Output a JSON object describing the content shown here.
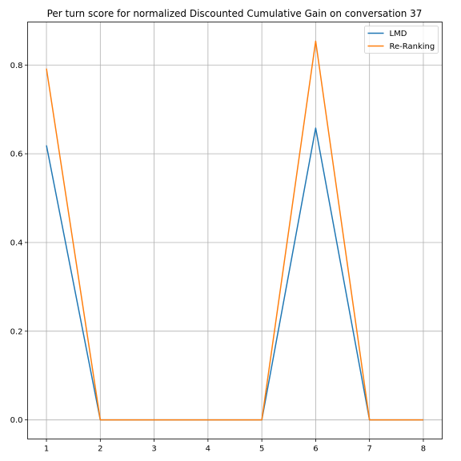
{
  "chart_data": {
    "type": "line",
    "title": "Per turn score for normalized Discounted Cumulative Gain on conversation 37",
    "xlabel": "",
    "ylabel": "",
    "x": [
      1,
      2,
      3,
      4,
      5,
      6,
      7,
      8
    ],
    "x_ticks": [
      "1",
      "2",
      "3",
      "4",
      "5",
      "6",
      "7",
      "8"
    ],
    "y_ticks": [
      "0.0",
      "0.2",
      "0.4",
      "0.6",
      "0.8"
    ],
    "y_tick_values": [
      0.0,
      0.2,
      0.4,
      0.6,
      0.8
    ],
    "xlim": [
      0.65,
      8.35
    ],
    "ylim": [
      -0.043,
      0.897
    ],
    "grid": true,
    "legend_position": "top-right",
    "series": [
      {
        "name": "LMD",
        "color": "#1f77b4",
        "values": [
          0.619,
          0.0,
          0.0,
          0.0,
          0.0,
          0.658,
          0.0,
          0.0
        ]
      },
      {
        "name": "Re-Ranking",
        "color": "#ff7f0e",
        "values": [
          0.792,
          0.0,
          0.0,
          0.0,
          0.0,
          0.854,
          0.0,
          0.0
        ]
      }
    ]
  }
}
